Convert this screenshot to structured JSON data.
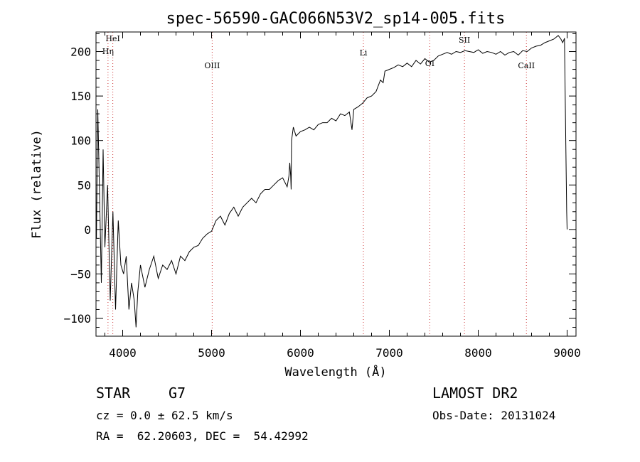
{
  "chart_data": {
    "type": "line",
    "title": "spec-56590-GAC066N53V2_sp14-005.fits",
    "xlabel": "Wavelength (Å)",
    "ylabel": "Flux (relative)",
    "xlim": [
      3700,
      9100
    ],
    "ylim": [
      -120,
      222
    ],
    "x_ticks": [
      4000,
      5000,
      6000,
      7000,
      8000,
      9000
    ],
    "x_tick_labels": [
      "4000",
      "5000",
      "6000",
      "7000",
      "8000",
      "9000"
    ],
    "y_ticks": [
      -100,
      -50,
      0,
      50,
      100,
      150,
      200
    ],
    "y_tick_labels": [
      "−100",
      "−50",
      "0",
      "50",
      "100",
      "150",
      "200"
    ],
    "grid": false,
    "line_color": "#000000",
    "marker_color": "#cc3333",
    "series": [
      {
        "x": [
          3705,
          3720,
          3740,
          3760,
          3780,
          3800,
          3830,
          3860,
          3890,
          3920,
          3950,
          3980,
          4010,
          4040,
          4070,
          4100,
          4130,
          4150,
          4170,
          4200,
          4250,
          4300,
          4350,
          4400,
          4450,
          4500,
          4550,
          4600,
          4650,
          4700,
          4750,
          4800,
          4850,
          4900,
          4950,
          5000,
          5050,
          5100,
          5150,
          5200,
          5250,
          5300,
          5350,
          5400,
          5450,
          5500,
          5550,
          5600,
          5650,
          5700,
          5750,
          5800,
          5850,
          5870,
          5880,
          5890,
          5895,
          5900,
          5920,
          5950,
          6000,
          6050,
          6100,
          6150,
          6200,
          6250,
          6300,
          6350,
          6400,
          6450,
          6500,
          6550,
          6580,
          6600,
          6650,
          6700,
          6750,
          6800,
          6850,
          6900,
          6930,
          6950,
          7000,
          7050,
          7100,
          7150,
          7200,
          7250,
          7300,
          7350,
          7400,
          7450,
          7500,
          7550,
          7600,
          7650,
          7700,
          7750,
          7800,
          7850,
          7900,
          7950,
          8000,
          8050,
          8100,
          8150,
          8200,
          8250,
          8300,
          8350,
          8400,
          8450,
          8500,
          8550,
          8600,
          8650,
          8700,
          8750,
          8800,
          8850,
          8900,
          8930,
          8950,
          8970,
          8985,
          8995,
          9000
        ],
        "y": [
          -10,
          135,
          40,
          -60,
          90,
          -20,
          50,
          -80,
          20,
          -90,
          10,
          -40,
          -50,
          -30,
          -90,
          -60,
          -80,
          -110,
          -70,
          -40,
          -65,
          -45,
          -30,
          -55,
          -40,
          -45,
          -35,
          -50,
          -30,
          -35,
          -25,
          -20,
          -18,
          -10,
          -5,
          -2,
          10,
          15,
          5,
          18,
          25,
          15,
          25,
          30,
          35,
          30,
          40,
          45,
          45,
          50,
          55,
          58,
          48,
          60,
          75,
          60,
          45,
          100,
          115,
          105,
          110,
          112,
          115,
          112,
          118,
          120,
          120,
          125,
          122,
          130,
          128,
          132,
          112,
          135,
          138,
          142,
          148,
          150,
          155,
          168,
          165,
          178,
          180,
          182,
          185,
          183,
          187,
          183,
          190,
          186,
          192,
          188,
          190,
          195,
          197,
          199,
          197,
          200,
          199,
          201,
          200,
          199,
          202,
          198,
          200,
          199,
          197,
          200,
          196,
          199,
          200,
          196,
          201,
          200,
          204,
          206,
          207,
          210,
          212,
          214,
          218,
          214,
          210,
          215,
          100,
          20,
          0
        ]
      }
    ],
    "line_markers": [
      {
        "label": "HeI",
        "x": 3889
      },
      {
        "label": "Hη",
        "x": 3835
      },
      {
        "label": "OIII",
        "x": 5007
      },
      {
        "label": "Li",
        "x": 6708
      },
      {
        "label": "OI",
        "x": 7455
      },
      {
        "label": "SII",
        "x": 7845
      },
      {
        "label": "CaII",
        "x": 8542
      }
    ]
  },
  "info": {
    "object_class": "STAR",
    "subclass": "G7",
    "survey": "LAMOST DR2",
    "cz": "cz = 0.0 ± 62.5 km/s",
    "obs_date": "Obs-Date: 20131024",
    "radec": "RA =  62.20603, DEC =  54.42992"
  }
}
